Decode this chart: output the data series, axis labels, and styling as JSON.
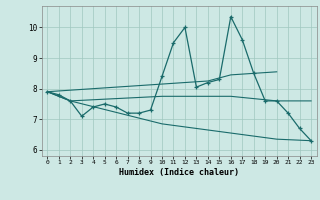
{
  "xlabel": "Humidex (Indice chaleur)",
  "bg_color": "#cde8e4",
  "grid_color": "#a0c8c0",
  "line_color": "#1a6b6b",
  "xlim": [
    -0.5,
    23.5
  ],
  "ylim": [
    5.8,
    10.7
  ],
  "yticks": [
    6,
    7,
    8,
    9,
    10
  ],
  "xticks": [
    0,
    1,
    2,
    3,
    4,
    5,
    6,
    7,
    8,
    9,
    10,
    11,
    12,
    13,
    14,
    15,
    16,
    17,
    18,
    19,
    20,
    21,
    22,
    23
  ],
  "main_x": [
    0,
    1,
    2,
    3,
    4,
    5,
    6,
    7,
    8,
    9,
    10,
    11,
    12,
    13,
    14,
    15,
    16,
    17,
    18,
    19,
    20,
    21,
    22,
    23
  ],
  "main_y": [
    7.9,
    7.8,
    7.6,
    7.1,
    7.4,
    7.5,
    7.4,
    7.2,
    7.2,
    7.3,
    8.4,
    9.5,
    10.0,
    8.05,
    8.2,
    8.3,
    10.35,
    9.6,
    8.5,
    7.6,
    7.6,
    7.2,
    6.7,
    6.3
  ],
  "upper_x": [
    0,
    10,
    14,
    16,
    20
  ],
  "upper_y": [
    7.9,
    8.15,
    8.25,
    8.45,
    8.55
  ],
  "mid_x": [
    0,
    2,
    10,
    14,
    16,
    20,
    23
  ],
  "mid_y": [
    7.9,
    7.6,
    7.75,
    7.75,
    7.75,
    7.6,
    7.6
  ],
  "lower_x": [
    0,
    2,
    10,
    14,
    16,
    20,
    23
  ],
  "lower_y": [
    7.9,
    7.6,
    6.85,
    6.65,
    6.55,
    6.35,
    6.3
  ]
}
